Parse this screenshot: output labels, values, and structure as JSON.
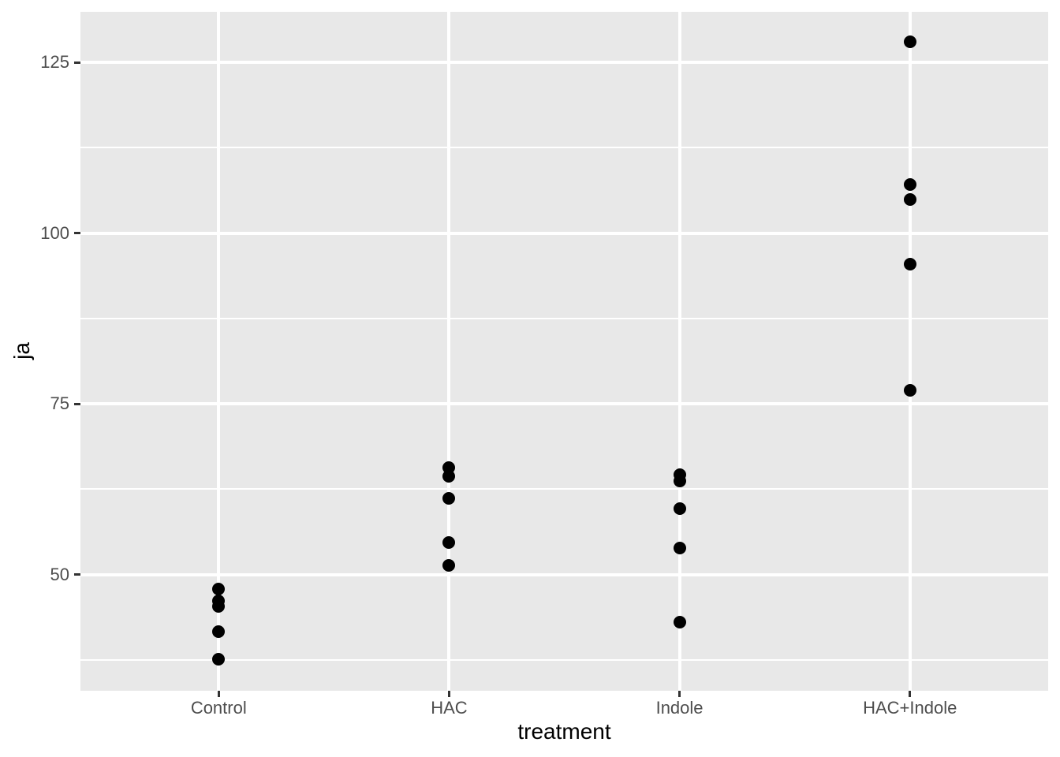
{
  "chart_data": {
    "type": "scatter",
    "title": "",
    "xlabel": "treatment",
    "ylabel": "ja",
    "categories": [
      "Control",
      "HAC",
      "Indole",
      "HAC+Indole"
    ],
    "series": [
      {
        "category": "Control",
        "values": [
          47.9,
          46.2,
          45.4,
          41.7,
          37.6
        ]
      },
      {
        "category": "HAC",
        "values": [
          65.7,
          64.4,
          61.2,
          54.7,
          51.4
        ]
      },
      {
        "category": "Indole",
        "values": [
          64.6,
          63.7,
          59.7,
          53.9,
          43.1
        ]
      },
      {
        "category": "HAC+Indole",
        "values": [
          128.0,
          107.1,
          104.9,
          95.4,
          77.0
        ]
      }
    ],
    "y_ticks": [
      50,
      75,
      100,
      125
    ],
    "y_minor_ticks": [
      37.5,
      62.5,
      87.5,
      112.5
    ],
    "ylim": [
      33.0,
      132.4
    ],
    "grid": true,
    "legend": "none",
    "point_color": "#000000",
    "panel_bg": "#E8E8E8",
    "grid_color": "#FFFFFF",
    "tick_label_color": "#4D4D4D",
    "axis_title_color": "#000000"
  }
}
